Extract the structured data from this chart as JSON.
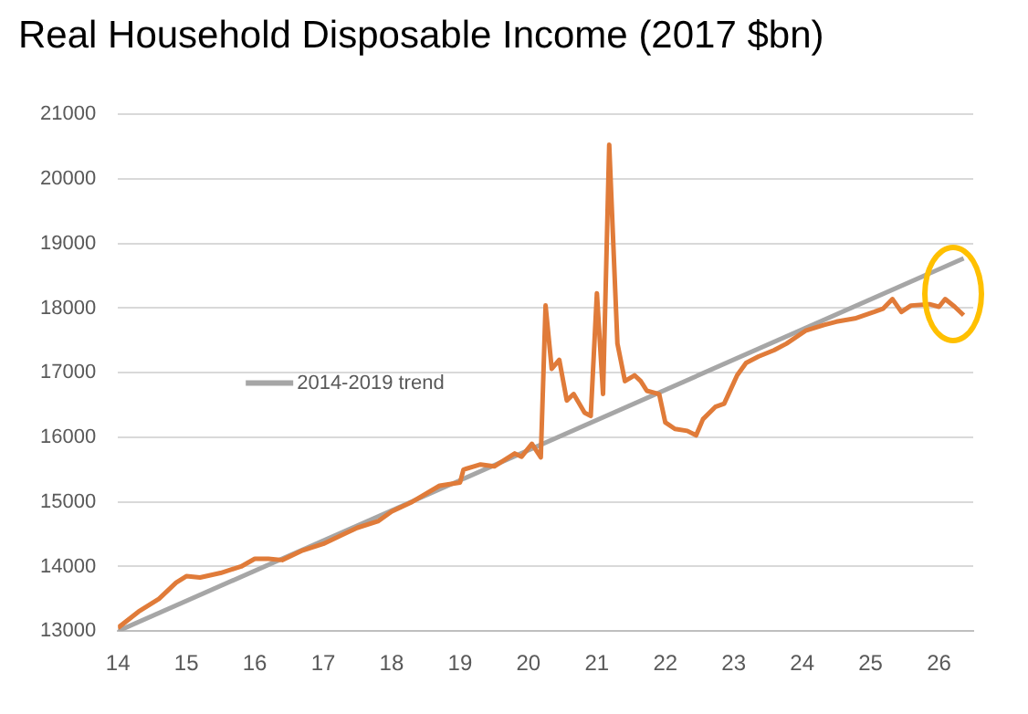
{
  "chart_data": {
    "type": "line",
    "title": "Real Household Disposable Income (2017 $bn)",
    "xlim": [
      14,
      26.5
    ],
    "xticks": [
      14,
      15,
      16,
      17,
      18,
      19,
      20,
      21,
      22,
      23,
      24,
      25,
      26
    ],
    "ylim": [
      13000,
      21000
    ],
    "yticks": [
      13000,
      14000,
      15000,
      16000,
      17000,
      18000,
      19000,
      20000,
      21000
    ],
    "grid": "y",
    "legend": "left",
    "marker": "none",
    "line_style": "solid",
    "series": [
      {
        "color": "#e07b39",
        "x": [
          14.0,
          14.3,
          14.6,
          14.85,
          15.0,
          15.2,
          15.5,
          15.8,
          16.0,
          16.2,
          16.4,
          16.7,
          17.0,
          17.3,
          17.5,
          17.8,
          18.0,
          18.3,
          18.7,
          19.0,
          19.05,
          19.3,
          19.5,
          19.8,
          19.9,
          20.05,
          20.18,
          20.25,
          20.34,
          20.45,
          20.56,
          20.66,
          20.82,
          20.91,
          21.0,
          21.09,
          21.18,
          21.3,
          21.41,
          21.55,
          21.64,
          21.73,
          21.91,
          22.0,
          22.14,
          22.32,
          22.45,
          22.55,
          22.73,
          22.86,
          23.05,
          23.18,
          23.36,
          23.59,
          23.77,
          24.05,
          24.32,
          24.5,
          24.77,
          25.05,
          25.18,
          25.32,
          25.45,
          25.59,
          25.86,
          26.0,
          26.09,
          26.23,
          26.36
        ],
        "values": [
          13050,
          13300,
          13500,
          13750,
          13850,
          13830,
          13900,
          14000,
          14120,
          14120,
          14100,
          14250,
          14350,
          14500,
          14600,
          14700,
          14850,
          15000,
          15250,
          15300,
          15500,
          15580,
          15550,
          15750,
          15700,
          15900,
          15690,
          18040,
          17060,
          17200,
          16570,
          16670,
          16380,
          16330,
          18230,
          16670,
          20530,
          17450,
          16870,
          16960,
          16870,
          16720,
          16670,
          16230,
          16130,
          16100,
          16030,
          16280,
          16470,
          16520,
          16960,
          17150,
          17250,
          17350,
          17450,
          17650,
          17740,
          17790,
          17840,
          17940,
          17990,
          18140,
          17940,
          18040,
          18060,
          18020,
          18140,
          18020,
          17890
        ]
      },
      {
        "name": "2014-2019 trend",
        "color": "#a6a6a6",
        "x": [
          14,
          26.36
        ],
        "values": [
          13000,
          18770
        ]
      }
    ]
  }
}
